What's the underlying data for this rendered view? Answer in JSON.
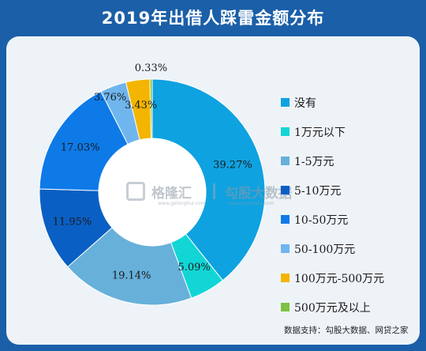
{
  "title": "2019年出借人踩雷金额分布",
  "source_text": "数据支持：勾股大数据、网贷之家",
  "watermark": {
    "brand1": "格隆汇",
    "brand1_sub": "www.gelonghui.com",
    "brand2": "勾股大数据",
    "brand2_sub": "www.gogudata.com"
  },
  "chart_data": {
    "type": "pie",
    "variant": "donut",
    "categories": [
      "没有",
      "1万元以下",
      "1-5万元",
      "5-10万元",
      "10-50万元",
      "50-100万元",
      "100万元-500万元",
      "500万元及以上"
    ],
    "values": [
      39.27,
      5.09,
      19.14,
      11.95,
      17.03,
      3.76,
      3.43,
      0.33
    ],
    "value_labels": [
      "39.27%",
      "5.09%",
      "19.14%",
      "11.95%",
      "17.03%",
      "3.76%",
      "3.43%",
      "0.33%"
    ],
    "colors": [
      "#0ea2e0",
      "#12d6d6",
      "#66b0da",
      "#0a5fc4",
      "#0d7ae8",
      "#6fb5ee",
      "#f3b500",
      "#7dc242"
    ],
    "unit": "%",
    "legend_position": "right",
    "start_angle_deg": 0,
    "direction": "clockwise"
  }
}
